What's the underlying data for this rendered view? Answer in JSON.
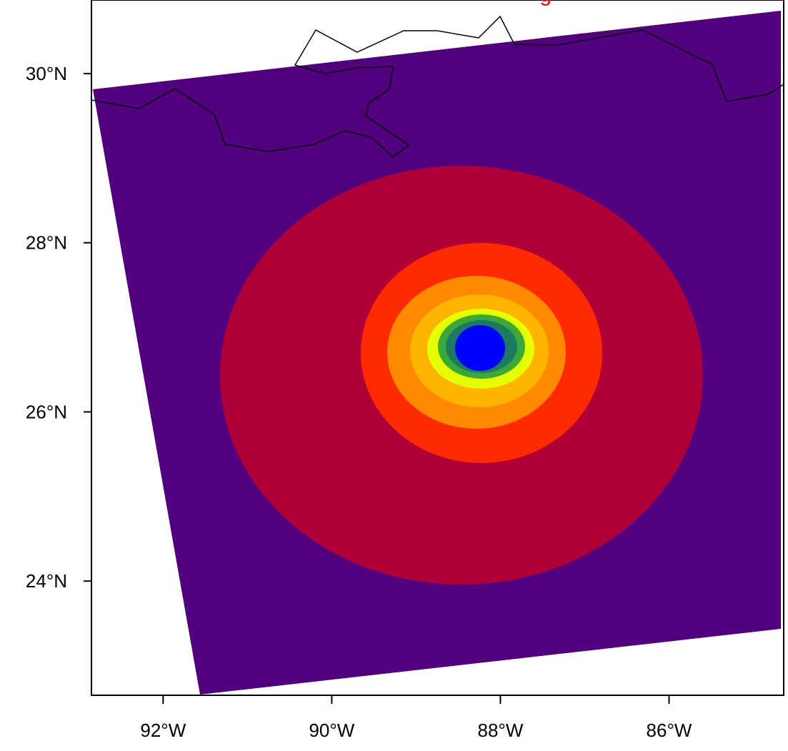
{
  "map": {
    "title_fragment": "g",
    "xlim": [
      -92.85,
      -84.64
    ],
    "ylim": [
      22.65,
      30.87
    ],
    "xticks": [
      {
        "value": -92,
        "label": "92°W"
      },
      {
        "value": -90,
        "label": "90°W"
      },
      {
        "value": -88,
        "label": "88°W"
      },
      {
        "value": -86,
        "label": "86°W"
      }
    ],
    "yticks": [
      {
        "value": 30,
        "label": "30°N"
      },
      {
        "value": 28,
        "label": "28°N"
      },
      {
        "value": 26,
        "label": "26°N"
      },
      {
        "value": 24,
        "label": "24°N"
      }
    ]
  }
}
